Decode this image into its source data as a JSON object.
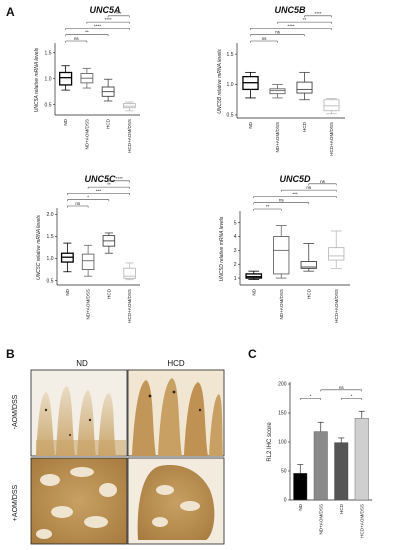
{
  "panels": {
    "A": "A",
    "B": "B",
    "C": "C"
  },
  "chart_data": [
    {
      "type": "box",
      "title": "UNC5A",
      "ylabel": "UNC5A relative mRNA levels",
      "ylim": [
        0.3,
        1.65
      ],
      "yticks": [
        "0.5",
        "1.0",
        "1.5"
      ],
      "categories": [
        "ND",
        "ND+AOM/DSS",
        "HCD",
        "HCD+AOM/DSS"
      ],
      "boxes": [
        {
          "min": 0.78,
          "q1": 0.88,
          "median": 1.02,
          "q3": 1.12,
          "max": 1.25
        },
        {
          "min": 0.82,
          "q1": 0.92,
          "median": 1.01,
          "q3": 1.1,
          "max": 1.2
        },
        {
          "min": 0.57,
          "q1": 0.66,
          "median": 0.75,
          "q3": 0.84,
          "max": 0.99
        },
        {
          "min": 0.38,
          "q1": 0.44,
          "median": 0.47,
          "q3": 0.52,
          "max": 0.55
        }
      ],
      "colors": [
        "#000000",
        "#666666",
        "#444444",
        "#bbbbbb"
      ],
      "significance": [
        {
          "a": 2,
          "b": 3,
          "label": "***"
        },
        {
          "a": 1,
          "b": 3,
          "label": "****"
        },
        {
          "a": 0,
          "b": 3,
          "label": "****"
        },
        {
          "a": 0,
          "b": 2,
          "label": "**"
        },
        {
          "a": 0,
          "b": 1,
          "label": "ns"
        }
      ]
    },
    {
      "type": "box",
      "title": "UNC5B",
      "ylabel": "UNC5B relative mRNA levels",
      "ylim": [
        0.45,
        1.65
      ],
      "yticks": [
        "0.5",
        "1.0",
        "1.5"
      ],
      "categories": [
        "ND",
        "ND+AOM/DSS",
        "HCD",
        "HCD+AOM/DSS"
      ],
      "boxes": [
        {
          "min": 0.78,
          "q1": 0.92,
          "median": 1.03,
          "q3": 1.13,
          "max": 1.2
        },
        {
          "min": 0.78,
          "q1": 0.85,
          "median": 0.9,
          "q3": 0.93,
          "max": 1.0
        },
        {
          "min": 0.75,
          "q1": 0.86,
          "median": 0.92,
          "q3": 1.04,
          "max": 1.2
        },
        {
          "min": 0.52,
          "q1": 0.57,
          "median": 0.65,
          "q3": 0.75,
          "max": 0.77
        }
      ],
      "colors": [
        "#000000",
        "#666666",
        "#444444",
        "#bbbbbb"
      ],
      "significance": [
        {
          "a": 2,
          "b": 3,
          "label": "****"
        },
        {
          "a": 1,
          "b": 3,
          "label": "**"
        },
        {
          "a": 0,
          "b": 3,
          "label": "****"
        },
        {
          "a": 0,
          "b": 2,
          "label": "ns"
        },
        {
          "a": 0,
          "b": 1,
          "label": "ns"
        }
      ]
    },
    {
      "type": "box",
      "title": "UNC5C",
      "ylabel": "UNC5C relative mRNA levels",
      "ylim": [
        0.4,
        2.1
      ],
      "yticks": [
        "0.5",
        "1.0",
        "1.5",
        "2.0"
      ],
      "categories": [
        "ND",
        "ND+AOM/DSS",
        "HCD",
        "HCD+AOM/DSS"
      ],
      "boxes": [
        {
          "min": 0.7,
          "q1": 0.92,
          "median": 1.03,
          "q3": 1.12,
          "max": 1.35
        },
        {
          "min": 0.6,
          "q1": 0.75,
          "median": 0.95,
          "q3": 1.1,
          "max": 1.3
        },
        {
          "min": 1.12,
          "q1": 1.28,
          "median": 1.4,
          "q3": 1.52,
          "max": 1.58
        },
        {
          "min": 0.52,
          "q1": 0.55,
          "median": 0.6,
          "q3": 0.78,
          "max": 0.9
        }
      ],
      "colors": [
        "#000000",
        "#666666",
        "#444444",
        "#bbbbbb"
      ],
      "significance": [
        {
          "a": 2,
          "b": 3,
          "label": "****"
        },
        {
          "a": 1,
          "b": 3,
          "label": "**"
        },
        {
          "a": 0,
          "b": 3,
          "label": "***"
        },
        {
          "a": 0,
          "b": 2,
          "label": "*"
        },
        {
          "a": 0,
          "b": 1,
          "label": "ns"
        }
      ]
    },
    {
      "type": "box",
      "title": "UNC5D",
      "ylabel": "UNC5D relative mRNA levels",
      "ylim": [
        0.5,
        5.7
      ],
      "yticks": [
        "1",
        "2",
        "3",
        "4",
        "5"
      ],
      "categories": [
        "ND",
        "ND+AOM/DSS",
        "HCD",
        "HCD+AOM/DSS"
      ],
      "boxes": [
        {
          "min": 0.9,
          "q1": 1.0,
          "median": 1.1,
          "q3": 1.3,
          "max": 1.5
        },
        {
          "min": 1.0,
          "q1": 1.3,
          "median": 3.0,
          "q3": 4.0,
          "max": 4.8
        },
        {
          "min": 1.5,
          "q1": 1.7,
          "median": 1.8,
          "q3": 2.2,
          "max": 3.5
        },
        {
          "min": 1.7,
          "q1": 2.3,
          "median": 2.6,
          "q3": 3.2,
          "max": 4.4
        }
      ],
      "colors": [
        "#000000",
        "#666666",
        "#444444",
        "#bbbbbb"
      ],
      "significance": [
        {
          "a": 2,
          "b": 3,
          "label": "ns"
        },
        {
          "a": 1,
          "b": 3,
          "label": "ns"
        },
        {
          "a": 0,
          "b": 3,
          "label": "***"
        },
        {
          "a": 0,
          "b": 2,
          "label": "ns"
        },
        {
          "a": 0,
          "b": 1,
          "label": "**"
        }
      ]
    },
    {
      "type": "bar",
      "title": "",
      "ylabel": "RL2 IHC score",
      "ylim": [
        0,
        200
      ],
      "yticks": [
        "0",
        "50",
        "100",
        "150",
        "200"
      ],
      "categories": [
        "ND",
        "ND+AOM/DSS",
        "HCD",
        "HCD+AOM/DSS"
      ],
      "values": [
        46,
        118,
        99,
        141
      ],
      "errors": [
        15,
        16,
        8,
        12
      ],
      "colors": [
        "#000000",
        "#8a8a8a",
        "#555555",
        "#cfcfcf"
      ],
      "significance": [
        {
          "a": 0,
          "b": 1,
          "label": "*"
        },
        {
          "a": 2,
          "b": 3,
          "label": "*"
        },
        {
          "a": 1,
          "b": 3,
          "label": "ns"
        }
      ]
    }
  ],
  "micrographs": {
    "col_labels": [
      "ND",
      "HCD"
    ],
    "row_labels": [
      "-AOM/DSS",
      "+AOM/DSS"
    ]
  }
}
